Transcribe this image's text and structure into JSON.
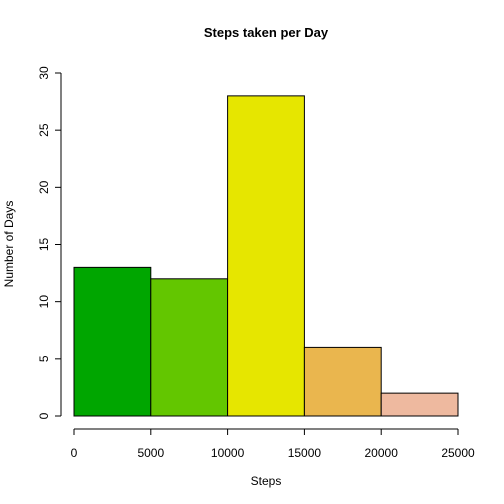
{
  "chart_data": {
    "type": "bar",
    "title": "Steps taken per Day",
    "xlabel": "Steps",
    "ylabel": "Number of Days",
    "bins": [
      {
        "from": 0,
        "to": 5000,
        "count": 13,
        "color": "#00A600"
      },
      {
        "from": 5000,
        "to": 10000,
        "count": 12,
        "color": "#63C600"
      },
      {
        "from": 10000,
        "to": 15000,
        "count": 28,
        "color": "#E6E600"
      },
      {
        "from": 15000,
        "to": 20000,
        "count": 6,
        "color": "#EAB64E"
      },
      {
        "from": 20000,
        "to": 25000,
        "count": 2,
        "color": "#EEB99F"
      }
    ],
    "xlim": [
      0,
      25000
    ],
    "ylim": [
      0,
      30
    ],
    "x_ticks": [
      "0",
      "5000",
      "10000",
      "15000",
      "20000",
      "25000"
    ],
    "y_ticks": [
      "0",
      "5",
      "10",
      "15",
      "20",
      "25",
      "30"
    ],
    "grid": false,
    "legend": "none"
  }
}
